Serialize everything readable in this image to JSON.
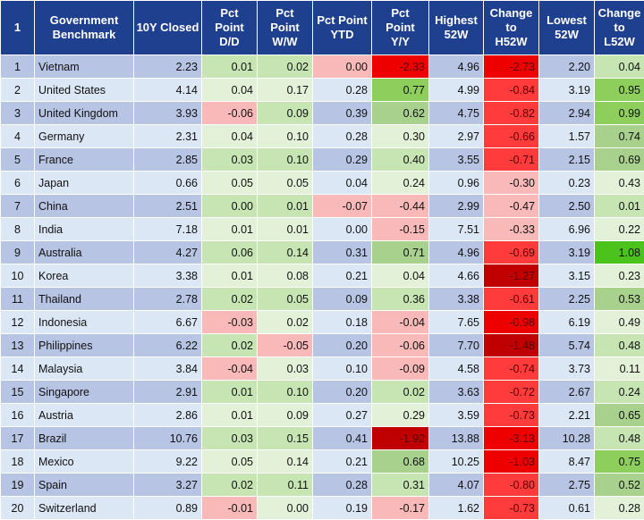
{
  "headers": [
    "1",
    "Government Benchmark",
    "10Y Closed",
    "Pct Point D/D",
    "Pct Point W/W",
    "Pct Point YTD",
    "Pct Point Y/Y",
    "Highest 52W",
    "Change to H52W",
    "Lowest 52W",
    "Change to L52W"
  ],
  "rows": [
    {
      "idx": "1",
      "country": "Vietnam",
      "close": "2.23",
      "dd": "0.01",
      "ww": "0.02",
      "ytd": "0.00",
      "yy": "-2.33",
      "h52": "4.96",
      "ch52": "-2.73",
      "l52": "2.20",
      "cl52": "0.04",
      "dd_c": "",
      "ww_c": "",
      "ytd_c": "r1",
      "yy_c": "r3",
      "ch52_c": "r3",
      "cl52_c": ""
    },
    {
      "idx": "2",
      "country": "United States",
      "close": "4.14",
      "dd": "0.04",
      "ww": "0.17",
      "ytd": "0.28",
      "yy": "0.77",
      "h52": "4.99",
      "ch52": "-0.84",
      "l52": "3.19",
      "cl52": "0.95",
      "dd_c": "",
      "ww_c": "",
      "ytd_c": "",
      "yy_c": "g2",
      "ch52_c": "r2",
      "cl52_c": "g2"
    },
    {
      "idx": "3",
      "country": "United Kingdom",
      "close": "3.93",
      "dd": "-0.06",
      "ww": "0.09",
      "ytd": "0.39",
      "yy": "0.62",
      "h52": "4.75",
      "ch52": "-0.82",
      "l52": "2.94",
      "cl52": "0.99",
      "dd_c": "r1",
      "ww_c": "",
      "ytd_c": "",
      "yy_c": "g1",
      "ch52_c": "r2",
      "cl52_c": "g2"
    },
    {
      "idx": "4",
      "country": "Germany",
      "close": "2.31",
      "dd": "0.04",
      "ww": "0.10",
      "ytd": "0.28",
      "yy": "0.30",
      "h52": "2.97",
      "ch52": "-0.66",
      "l52": "1.57",
      "cl52": "0.74",
      "dd_c": "",
      "ww_c": "",
      "ytd_c": "",
      "yy_c": "",
      "ch52_c": "r2",
      "cl52_c": "g1"
    },
    {
      "idx": "5",
      "country": "France",
      "close": "2.85",
      "dd": "0.03",
      "ww": "0.10",
      "ytd": "0.29",
      "yy": "0.40",
      "h52": "3.55",
      "ch52": "-0.71",
      "l52": "2.15",
      "cl52": "0.69",
      "dd_c": "",
      "ww_c": "",
      "ytd_c": "",
      "yy_c": "",
      "ch52_c": "r2",
      "cl52_c": "g1"
    },
    {
      "idx": "6",
      "country": "Japan",
      "close": "0.66",
      "dd": "0.05",
      "ww": "0.05",
      "ytd": "0.04",
      "yy": "0.24",
      "h52": "0.96",
      "ch52": "-0.30",
      "l52": "0.23",
      "cl52": "0.43",
      "dd_c": "",
      "ww_c": "",
      "ytd_c": "",
      "yy_c": "",
      "ch52_c": "r1",
      "cl52_c": ""
    },
    {
      "idx": "7",
      "country": "China",
      "close": "2.51",
      "dd": "0.00",
      "ww": "0.01",
      "ytd": "-0.07",
      "yy": "-0.44",
      "h52": "2.99",
      "ch52": "-0.47",
      "l52": "2.50",
      "cl52": "0.01",
      "dd_c": "",
      "ww_c": "",
      "ytd_c": "r1",
      "yy_c": "r1",
      "ch52_c": "r1",
      "cl52_c": ""
    },
    {
      "idx": "8",
      "country": "India",
      "close": "7.18",
      "dd": "0.01",
      "ww": "0.01",
      "ytd": "0.00",
      "yy": "-0.15",
      "h52": "7.51",
      "ch52": "-0.33",
      "l52": "6.96",
      "cl52": "0.22",
      "dd_c": "",
      "ww_c": "",
      "ytd_c": "",
      "yy_c": "r1",
      "ch52_c": "r1",
      "cl52_c": ""
    },
    {
      "idx": "9",
      "country": "Australia",
      "close": "4.27",
      "dd": "0.06",
      "ww": "0.14",
      "ytd": "0.31",
      "yy": "0.71",
      "h52": "4.96",
      "ch52": "-0.69",
      "l52": "3.19",
      "cl52": "1.08",
      "dd_c": "",
      "ww_c": "",
      "ytd_c": "",
      "yy_c": "g1",
      "ch52_c": "r2",
      "cl52_c": "g3"
    },
    {
      "idx": "10",
      "country": "Korea",
      "close": "3.38",
      "dd": "0.01",
      "ww": "0.08",
      "ytd": "0.21",
      "yy": "0.04",
      "h52": "4.66",
      "ch52": "-1.27",
      "l52": "3.15",
      "cl52": "0.23",
      "dd_c": "",
      "ww_c": "",
      "ytd_c": "",
      "yy_c": "",
      "ch52_c": "r4",
      "cl52_c": ""
    },
    {
      "idx": "11",
      "country": "Thailand",
      "close": "2.78",
      "dd": "0.02",
      "ww": "0.05",
      "ytd": "0.09",
      "yy": "0.36",
      "h52": "3.38",
      "ch52": "-0.61",
      "l52": "2.25",
      "cl52": "0.53",
      "dd_c": "",
      "ww_c": "",
      "ytd_c": "",
      "yy_c": "",
      "ch52_c": "r2",
      "cl52_c": "g1"
    },
    {
      "idx": "12",
      "country": "Indonesia",
      "close": "6.67",
      "dd": "-0.03",
      "ww": "0.02",
      "ytd": "0.18",
      "yy": "-0.04",
      "h52": "7.65",
      "ch52": "-0.98",
      "l52": "6.19",
      "cl52": "0.49",
      "dd_c": "r1",
      "ww_c": "",
      "ytd_c": "",
      "yy_c": "r1",
      "ch52_c": "r3",
      "cl52_c": ""
    },
    {
      "idx": "13",
      "country": "Philippines",
      "close": "6.22",
      "dd": "0.02",
      "ww": "-0.05",
      "ytd": "0.20",
      "yy": "-0.06",
      "h52": "7.70",
      "ch52": "-1.48",
      "l52": "5.74",
      "cl52": "0.48",
      "dd_c": "",
      "ww_c": "r1",
      "ytd_c": "",
      "yy_c": "r1",
      "ch52_c": "r4",
      "cl52_c": ""
    },
    {
      "idx": "14",
      "country": "Malaysia",
      "close": "3.84",
      "dd": "-0.04",
      "ww": "0.03",
      "ytd": "0.10",
      "yy": "-0.09",
      "h52": "4.58",
      "ch52": "-0.74",
      "l52": "3.73",
      "cl52": "0.11",
      "dd_c": "r1",
      "ww_c": "",
      "ytd_c": "",
      "yy_c": "r1",
      "ch52_c": "r2",
      "cl52_c": ""
    },
    {
      "idx": "15",
      "country": "Singapore",
      "close": "2.91",
      "dd": "0.01",
      "ww": "0.10",
      "ytd": "0.20",
      "yy": "0.02",
      "h52": "3.63",
      "ch52": "-0.72",
      "l52": "2.67",
      "cl52": "0.24",
      "dd_c": "",
      "ww_c": "",
      "ytd_c": "",
      "yy_c": "",
      "ch52_c": "r2",
      "cl52_c": ""
    },
    {
      "idx": "16",
      "country": "Austria",
      "close": "2.86",
      "dd": "0.01",
      "ww": "0.09",
      "ytd": "0.27",
      "yy": "0.29",
      "h52": "3.59",
      "ch52": "-0.73",
      "l52": "2.21",
      "cl52": "0.65",
      "dd_c": "",
      "ww_c": "",
      "ytd_c": "",
      "yy_c": "",
      "ch52_c": "r2",
      "cl52_c": "g1"
    },
    {
      "idx": "17",
      "country": "Brazil",
      "close": "10.76",
      "dd": "0.03",
      "ww": "0.15",
      "ytd": "0.41",
      "yy": "-1.92",
      "h52": "13.88",
      "ch52": "-3.13",
      "l52": "10.28",
      "cl52": "0.48",
      "dd_c": "",
      "ww_c": "",
      "ytd_c": "",
      "yy_c": "r4",
      "ch52_c": "r3",
      "cl52_c": ""
    },
    {
      "idx": "18",
      "country": "Mexico",
      "close": "9.22",
      "dd": "0.05",
      "ww": "0.14",
      "ytd": "0.21",
      "yy": "0.68",
      "h52": "10.25",
      "ch52": "-1.03",
      "l52": "8.47",
      "cl52": "0.75",
      "dd_c": "",
      "ww_c": "",
      "ytd_c": "",
      "yy_c": "g1",
      "ch52_c": "r3",
      "cl52_c": "g2"
    },
    {
      "idx": "19",
      "country": "Spain",
      "close": "3.27",
      "dd": "0.02",
      "ww": "0.11",
      "ytd": "0.28",
      "yy": "0.31",
      "h52": "4.07",
      "ch52": "-0.80",
      "l52": "2.75",
      "cl52": "0.52",
      "dd_c": "",
      "ww_c": "",
      "ytd_c": "",
      "yy_c": "",
      "ch52_c": "r2",
      "cl52_c": "g1"
    },
    {
      "idx": "20",
      "country": "Switzerland",
      "close": "0.89",
      "dd": "-0.01",
      "ww": "0.00",
      "ytd": "0.19",
      "yy": "-0.17",
      "h52": "1.62",
      "ch52": "-0.73",
      "l52": "0.61",
      "cl52": "0.28",
      "dd_c": "r1",
      "ww_c": "",
      "ytd_c": "",
      "yy_c": "r1",
      "ch52_c": "r2",
      "cl52_c": ""
    }
  ],
  "colors": {
    "header_bg": "#1f3f8f",
    "row_odd": "#b7c4e4",
    "row_even": "#dce7f5",
    "green_odd": "#c6e5b3",
    "green_even": "#e3f1d8",
    "red_light": "#f9b9b9",
    "red_mid": "#ff3b3b",
    "red_strong": "#ee0000",
    "red_dark": "#c00000",
    "green_light": "#a9d18e",
    "green_mid": "#8ece5c",
    "green_strong": "#4cc21d"
  }
}
